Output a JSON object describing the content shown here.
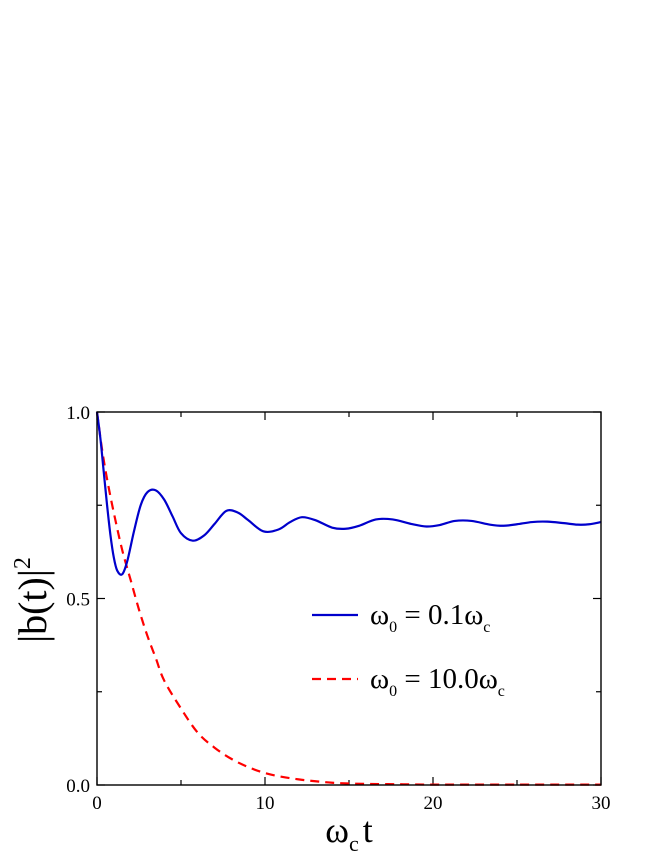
{
  "chart_data": {
    "type": "line",
    "xlabel": {
      "main": "ω",
      "sub": "c",
      "tail": "t"
    },
    "ylabel": {
      "main": "|b(t)|",
      "sup": "2"
    },
    "xlim": [
      0,
      30
    ],
    "ylim": [
      0.0,
      1.0
    ],
    "x_ticks": [
      0,
      10,
      20,
      30
    ],
    "x_tick_labels": [
      "0",
      "10",
      "20",
      "30"
    ],
    "y_ticks": [
      0.0,
      0.5,
      1.0
    ],
    "y_tick_labels": [
      "0.0",
      "0.5",
      "1.0"
    ],
    "grid": false,
    "legend_position": "center-right",
    "series": [
      {
        "name": "ω0 = 0.1ωc",
        "legend": {
          "sym": "ω",
          "sub1": "0",
          "mid": " = 0.1ω",
          "sub2": "c"
        },
        "color": "#0000cc",
        "style": "solid",
        "x": [
          0,
          0.2,
          0.4,
          0.6,
          0.8,
          1.0,
          1.2,
          1.5,
          1.8,
          2.2,
          2.6,
          3.0,
          3.5,
          4.0,
          4.5,
          5.0,
          5.7,
          6.4,
          7.0,
          7.7,
          8.4,
          9.0,
          9.9,
          10.8,
          11.5,
          12.2,
          13.0,
          14.0,
          14.8,
          15.6,
          16.6,
          17.6,
          18.7,
          19.6,
          20.4,
          21.3,
          22.3,
          23.4,
          24.2,
          25.0,
          25.9,
          26.8,
          27.8,
          28.6,
          29.3,
          30.0
        ],
        "y": [
          1.0,
          0.93,
          0.84,
          0.75,
          0.67,
          0.61,
          0.575,
          0.565,
          0.6,
          0.68,
          0.75,
          0.785,
          0.79,
          0.765,
          0.72,
          0.675,
          0.655,
          0.67,
          0.7,
          0.735,
          0.73,
          0.71,
          0.68,
          0.685,
          0.705,
          0.718,
          0.71,
          0.69,
          0.687,
          0.695,
          0.712,
          0.712,
          0.7,
          0.693,
          0.697,
          0.708,
          0.708,
          0.698,
          0.695,
          0.699,
          0.705,
          0.706,
          0.702,
          0.698,
          0.699,
          0.705
        ]
      },
      {
        "name": "ω0 = 10.0ωc",
        "legend": {
          "sym": "ω",
          "sub1": "0",
          "mid": " = 10.0ω",
          "sub2": "c"
        },
        "color": "#ff0000",
        "style": "dashed",
        "x": [
          0,
          0.3,
          0.6,
          1.0,
          1.5,
          2.0,
          2.5,
          3.0,
          3.5,
          4.0,
          5.0,
          6.0,
          7.0,
          8.0,
          9.0,
          10.0,
          11.0,
          12.0,
          13.0,
          14.0,
          15.0,
          16.0,
          18.0,
          20.0,
          22.0,
          25.0,
          28.0,
          30.0
        ],
        "y": [
          1.0,
          0.9,
          0.82,
          0.73,
          0.63,
          0.55,
          0.47,
          0.4,
          0.34,
          0.28,
          0.205,
          0.14,
          0.1,
          0.07,
          0.048,
          0.032,
          0.022,
          0.015,
          0.01,
          0.006,
          0.004,
          0.003,
          0.002,
          0.001,
          0.001,
          0.001,
          0.001,
          0.001
        ]
      }
    ]
  }
}
